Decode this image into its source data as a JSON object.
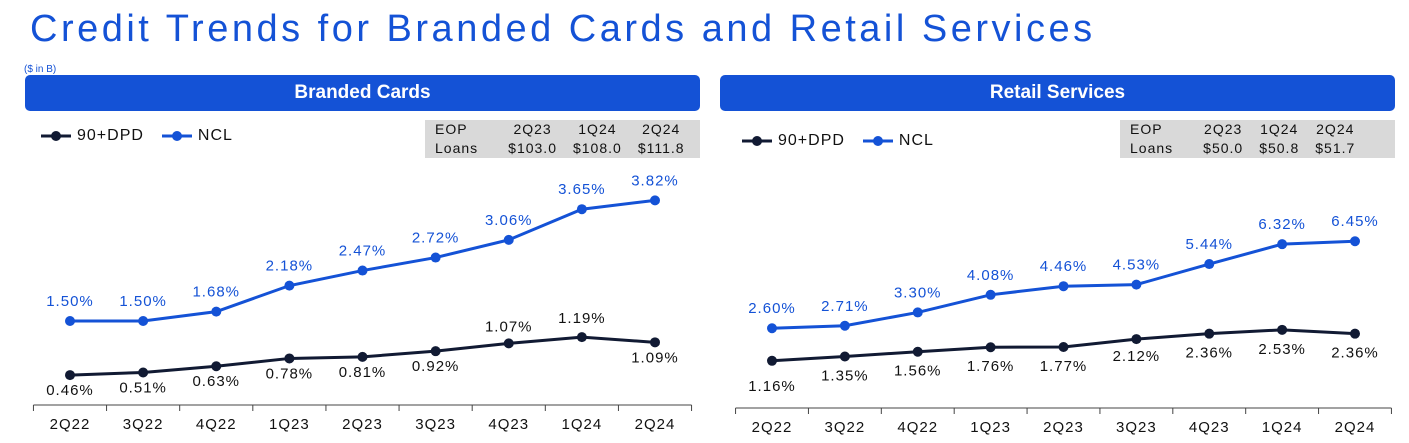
{
  "page": {
    "title": "Credit Trends for Branded Cards and Retail Services",
    "units": "($ in B)"
  },
  "colors": {
    "ncl": "#1452d6",
    "dpd": "#111a33",
    "banner": "#1452d6"
  },
  "left": {
    "banner": "Branded Cards",
    "legend": {
      "dpd": "90+DPD",
      "ncl": "NCL"
    },
    "eop": {
      "headers": [
        "EOP",
        "2Q23",
        "1Q24",
        "2Q24"
      ],
      "row_label": "Loans",
      "values": [
        "$103.0",
        "$108.0",
        "$111.8"
      ]
    }
  },
  "right": {
    "banner": "Retail Services",
    "legend": {
      "dpd": "90+DPD",
      "ncl": "NCL"
    },
    "eop": {
      "headers": [
        "EOP",
        "2Q23",
        "1Q24",
        "2Q24"
      ],
      "row_label": "Loans",
      "values": [
        "$50.0",
        "$50.8",
        "$51.7"
      ]
    }
  },
  "chart_data": [
    {
      "type": "line",
      "title": "Branded Cards",
      "categories": [
        "2Q22",
        "3Q22",
        "4Q22",
        "1Q23",
        "2Q23",
        "3Q23",
        "4Q23",
        "1Q24",
        "2Q24"
      ],
      "series": [
        {
          "name": "NCL",
          "values": [
            1.5,
            1.5,
            1.68,
            2.18,
            2.47,
            2.72,
            3.06,
            3.65,
            3.82
          ],
          "labels": [
            "1.50%",
            "1.50%",
            "1.68%",
            "2.18%",
            "2.47%",
            "2.72%",
            "3.06%",
            "3.65%",
            "3.82%"
          ]
        },
        {
          "name": "90+DPD",
          "values": [
            0.46,
            0.51,
            0.63,
            0.78,
            0.81,
            0.92,
            1.07,
            1.19,
            1.09
          ],
          "labels": [
            "0.46%",
            "0.51%",
            "0.63%",
            "0.78%",
            "0.81%",
            "0.92%",
            "1.07%",
            "1.19%",
            "1.09%"
          ]
        }
      ]
    },
    {
      "type": "line",
      "title": "Retail Services",
      "categories": [
        "2Q22",
        "3Q22",
        "4Q22",
        "1Q23",
        "2Q23",
        "3Q23",
        "4Q23",
        "1Q24",
        "2Q24"
      ],
      "series": [
        {
          "name": "NCL",
          "values": [
            2.6,
            2.71,
            3.3,
            4.08,
            4.46,
            4.53,
            5.44,
            6.32,
            6.45
          ],
          "labels": [
            "2.60%",
            "2.71%",
            "3.30%",
            "4.08%",
            "4.46%",
            "4.53%",
            "5.44%",
            "6.32%",
            "6.45%"
          ]
        },
        {
          "name": "90+DPD",
          "values": [
            1.16,
            1.35,
            1.56,
            1.76,
            1.77,
            2.12,
            2.36,
            2.53,
            2.36
          ],
          "labels": [
            "1.16%",
            "1.35%",
            "1.56%",
            "1.76%",
            "1.77%",
            "2.12%",
            "2.36%",
            "2.53%",
            "2.36%"
          ]
        }
      ]
    }
  ]
}
